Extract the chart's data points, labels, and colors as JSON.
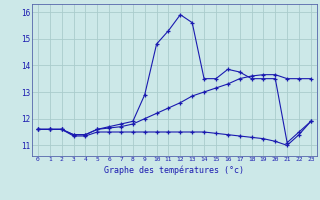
{
  "title": "Graphe des températures (°c)",
  "background_color": "#cce8e8",
  "grid_color": "#aacccc",
  "line_color": "#1a1ab0",
  "x_min": -0.5,
  "x_max": 23.5,
  "y_min": 10.6,
  "y_max": 16.3,
  "y_ticks": [
    11,
    12,
    13,
    14,
    15,
    16
  ],
  "x_ticks": [
    0,
    1,
    2,
    3,
    4,
    5,
    6,
    7,
    8,
    9,
    10,
    11,
    12,
    13,
    14,
    15,
    16,
    17,
    18,
    19,
    20,
    21,
    22,
    23
  ],
  "series": [
    {
      "x": [
        0,
        1,
        2,
        3,
        4,
        5,
        6,
        7,
        8,
        9,
        10,
        11,
        12,
        13,
        14,
        15,
        16,
        17,
        18,
        19,
        20,
        21,
        22,
        23
      ],
      "y": [
        11.6,
        11.6,
        11.6,
        11.4,
        11.4,
        11.6,
        11.7,
        11.8,
        11.9,
        12.9,
        14.8,
        15.3,
        15.9,
        15.6,
        13.5,
        13.5,
        13.85,
        13.75,
        13.5,
        13.5,
        13.5,
        11.1,
        11.5,
        11.9
      ]
    },
    {
      "x": [
        0,
        1,
        2,
        3,
        4,
        5,
        6,
        7,
        8,
        9,
        10,
        11,
        12,
        13,
        14,
        15,
        16,
        17,
        18,
        19,
        20,
        21,
        22,
        23
      ],
      "y": [
        11.6,
        11.6,
        11.6,
        11.4,
        11.4,
        11.6,
        11.65,
        11.7,
        11.8,
        12.0,
        12.2,
        12.4,
        12.6,
        12.85,
        13.0,
        13.15,
        13.3,
        13.5,
        13.6,
        13.65,
        13.65,
        13.5,
        13.5,
        13.5
      ]
    },
    {
      "x": [
        0,
        1,
        2,
        3,
        4,
        5,
        6,
        7,
        8,
        9,
        10,
        11,
        12,
        13,
        14,
        15,
        16,
        17,
        18,
        19,
        20,
        21,
        22,
        23
      ],
      "y": [
        11.6,
        11.6,
        11.6,
        11.35,
        11.35,
        11.5,
        11.5,
        11.5,
        11.5,
        11.5,
        11.5,
        11.5,
        11.5,
        11.5,
        11.5,
        11.45,
        11.4,
        11.35,
        11.3,
        11.25,
        11.15,
        11.0,
        11.4,
        11.9
      ]
    }
  ]
}
